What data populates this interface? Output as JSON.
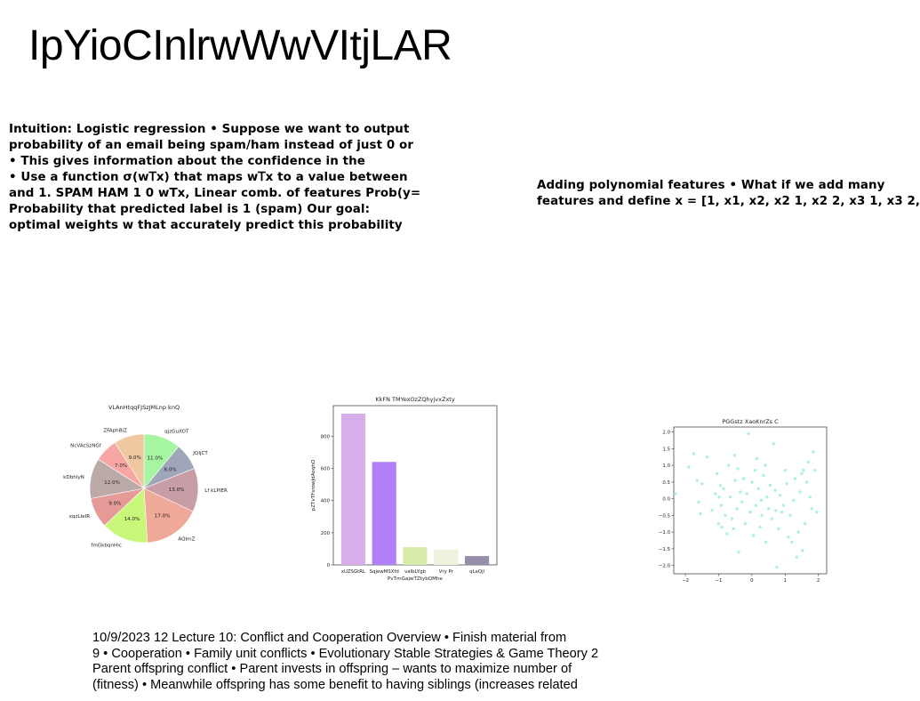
{
  "title": "IpYioCInlrwWwVItjLAR",
  "intuition_text": [
    "Intuition: Logistic regression • Suppose we want to output",
    "probability of an email being spam/ham instead of just 0 or",
    "• This gives information about the confidence in the",
    "• Use a function σ(w𝖳x) that maps w𝖳x to a value between",
    "and 1. SPAM HAM 1 0 wTx, Linear comb. of features Prob(y=",
    "Probability that predicted label is 1 (spam) Our goal:",
    "optimal weights w that accurately predict this probability"
  ],
  "polynomial_text": [
    "Adding polynomial features • What if we add many",
    "features and define x = [1, x1, x2, x2 1, x2 2, x3 1, x3 2,"
  ],
  "footer_text": [
    "10/9/2023 12 Lecture 10: Conflict and Cooperation Overview • Finish material from",
    "9 • Cooperation • Family unit conflicts • Evolutionary Stable Strategies & Game Theory 2",
    "Parent offspring conflict • Parent invests in offspring – wants to maximize number of",
    "(fitness) • Meanwhile offspring has some benefit to having siblings (increases related"
  ],
  "chart_data": [
    {
      "type": "pie",
      "title": "VLAnHtqqFJSzJMLnp knQ",
      "slices": [
        {
          "label": "qjzGuXOT",
          "value": 11.0,
          "pct_label": "11.0%",
          "color": "#a6f5a0"
        },
        {
          "label": "JQIjCT",
          "value": 8.0,
          "pct_label": "8.0%",
          "color": "#9fa6b9"
        },
        {
          "label": "Lf kLPlER",
          "value": 13.0,
          "pct_label": "13.0%",
          "color": "#c89ea6"
        },
        {
          "label": "AQImZ",
          "value": 17.0,
          "pct_label": "17.0%",
          "color": "#f0a898"
        },
        {
          "label": "fmGkbqnHic",
          "value": 14.0,
          "pct_label": "14.0%",
          "color": "#c8f77a"
        },
        {
          "label": "xqzLIeIR",
          "value": 9.0,
          "pct_label": "9.0%",
          "color": "#e59a97"
        },
        {
          "label": "kDbhlyN",
          "value": 12.0,
          "pct_label": "12.0%",
          "color": "#bbaaa8"
        },
        {
          "label": "NcVAcSzNGf",
          "value": 7.0,
          "pct_label": "7.0%",
          "color": "#f6a7a3"
        },
        {
          "label": "ZFAphBiZ",
          "value": 9.0,
          "pct_label": "9.0%",
          "color": "#efc8a2"
        }
      ]
    },
    {
      "type": "bar",
      "title": "KkFN TMYexOzZQhyjvxZxty",
      "xlabel": "PvTmGajwTZtybQMhe",
      "ylabel": "pZTvTFsrowJdAoqhO",
      "categories": [
        "xUZSGtRL",
        "SqjewMSXfd",
        "vaIbLYgb",
        "Vry Pr",
        "qLaQjl"
      ],
      "values": [
        940,
        640,
        110,
        95,
        55
      ],
      "colors": [
        "#d6aeea",
        "#b07ef5",
        "#d6eaaa",
        "#eff3de",
        "#968ea8"
      ],
      "yticks": [
        0,
        200,
        400,
        600,
        800
      ],
      "ylim": [
        0,
        990
      ]
    },
    {
      "type": "scatter",
      "title": "PGGstz XaoKnrZs C",
      "color": "#aef2dc",
      "xlim": [
        -2.35,
        2.25
      ],
      "ylim": [
        -2.25,
        2.15
      ],
      "xticks": [
        -2,
        -1,
        0,
        1,
        2
      ],
      "yticks": [
        2.0,
        1.5,
        1.0,
        0.5,
        0.0,
        -0.5,
        -1.0,
        -1.5,
        -2.0
      ],
      "points": [
        [
          -2.3,
          0.15
        ],
        [
          -1.9,
          0.95
        ],
        [
          -1.75,
          1.35
        ],
        [
          -1.65,
          0.55
        ],
        [
          -1.6,
          -0.1
        ],
        [
          -1.55,
          -0.45
        ],
        [
          -1.5,
          0.45
        ],
        [
          -1.35,
          1.25
        ],
        [
          -1.2,
          -0.35
        ],
        [
          -1.05,
          0.75
        ],
        [
          -1.0,
          -0.75
        ],
        [
          -0.98,
          0.05
        ],
        [
          -0.92,
          -0.2
        ],
        [
          -0.9,
          -0.85
        ],
        [
          -0.85,
          0.3
        ],
        [
          -0.8,
          -0.5
        ],
        [
          -0.75,
          -1.05
        ],
        [
          -0.7,
          1.0
        ],
        [
          -0.65,
          0.05
        ],
        [
          -0.6,
          -0.6
        ],
        [
          -0.55,
          -0.9
        ],
        [
          -0.52,
          1.3
        ],
        [
          -0.5,
          0.55
        ],
        [
          -0.45,
          -0.3
        ],
        [
          -0.42,
          0.9
        ],
        [
          -0.4,
          -1.6
        ],
        [
          -0.35,
          0.2
        ],
        [
          -0.3,
          -0.1
        ],
        [
          -0.25,
          0.6
        ],
        [
          -0.2,
          -0.75
        ],
        [
          -0.15,
          0.15
        ],
        [
          -0.1,
          1.95
        ],
        [
          -0.05,
          -0.4
        ],
        [
          0.0,
          0.5
        ],
        [
          0.05,
          -1.1
        ],
        [
          0.1,
          0.85
        ],
        [
          0.12,
          -0.2
        ],
        [
          0.15,
          1.2
        ],
        [
          0.2,
          0.3
        ],
        [
          0.25,
          -0.85
        ],
        [
          0.3,
          -0.5
        ],
        [
          0.35,
          0.7
        ],
        [
          0.4,
          1.0
        ],
        [
          0.42,
          -1.3
        ],
        [
          0.45,
          0.05
        ],
        [
          0.5,
          -0.3
        ],
        [
          0.55,
          0.4
        ],
        [
          0.6,
          -0.6
        ],
        [
          0.65,
          1.65
        ],
        [
          0.7,
          0.25
        ],
        [
          0.72,
          -0.35
        ],
        [
          0.75,
          -2.05
        ],
        [
          0.8,
          -0.9
        ],
        [
          0.85,
          0.1
        ],
        [
          0.9,
          -0.4
        ],
        [
          0.95,
          -0.2
        ],
        [
          1.0,
          0.85
        ],
        [
          1.05,
          0.45
        ],
        [
          1.1,
          -1.15
        ],
        [
          1.15,
          -0.5
        ],
        [
          1.2,
          -1.3
        ],
        [
          1.25,
          -0.05
        ],
        [
          1.3,
          0.6
        ],
        [
          1.35,
          -1.75
        ],
        [
          1.4,
          -1.0
        ],
        [
          1.45,
          0.2
        ],
        [
          1.5,
          0.75
        ],
        [
          1.52,
          -1.55
        ],
        [
          1.55,
          0.85
        ],
        [
          1.6,
          -0.75
        ],
        [
          1.65,
          0.5
        ],
        [
          1.7,
          1.1
        ],
        [
          1.75,
          0.05
        ],
        [
          1.8,
          -0.3
        ],
        [
          1.85,
          1.4
        ],
        [
          1.9,
          0.85
        ],
        [
          1.95,
          -0.4
        ],
        [
          -0.95,
          0.4
        ],
        [
          -1.1,
          0.15
        ],
        [
          0.28,
          -0.05
        ]
      ]
    }
  ]
}
